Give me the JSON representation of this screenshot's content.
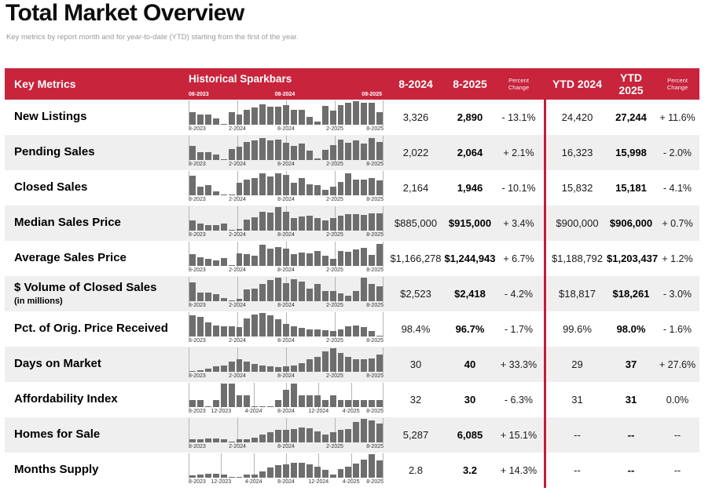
{
  "page": {
    "title": "Total Market Overview",
    "subtitle": "Key metrics by report month and for year-to-date (YTD) starting from the first of the year."
  },
  "colors": {
    "header_red": "#C8243C",
    "divider_red": "#BE1E3A",
    "bar_gray": "#6E6E6E",
    "alt_row_bg": "#EFEFEF"
  },
  "header": {
    "key_metrics": "Key Metrics",
    "sparkbars": "Historical Sparkbars",
    "spark_ticks": [
      "08-2023",
      "08-2024",
      "08-2025"
    ],
    "col_month_1": "8-2024",
    "col_month_2": "8-2025",
    "col_pct_label": "Percent Change",
    "col_ytd_1": "YTD 2024",
    "col_ytd_2": "YTD 2025",
    "col_pct_label_2": "Percent Change"
  },
  "chart_data": {
    "type": "table",
    "title": "Total Market Overview",
    "columns": [
      "Key Metrics",
      "Historical Sparkbars",
      "8-2024",
      "8-2025",
      "Percent Change",
      "YTD 2024",
      "YTD 2025",
      "Percent Change"
    ],
    "sparkbar_note": "each sparkbar is a 25-month bar series (Aug 2023 - Aug 2025), values are relative heights 0-1",
    "rows": [
      {
        "metric": "New Listings",
        "note": "",
        "sparkbar": {
          "type": "bar",
          "x_ticks": [
            "8-2023",
            "2-2024",
            "8-2024",
            "2-2025",
            "8-2025"
          ],
          "values": [
            0.52,
            0.42,
            0.42,
            0.28,
            0.03,
            0.55,
            0.45,
            0.62,
            0.72,
            0.88,
            0.78,
            0.78,
            0.82,
            0.62,
            0.62,
            0.32,
            0.12,
            0.8,
            0.6,
            0.85,
            0.95,
            1.0,
            0.92,
            0.92,
            0.55
          ]
        },
        "cells": {
          "month_2024": "3,326",
          "month_2025": "2,890",
          "month_pct": "- 13.1%",
          "ytd_2024": "24,420",
          "ytd_2025": "27,244",
          "ytd_pct": "+ 11.6%"
        }
      },
      {
        "metric": "Pending Sales",
        "note": "",
        "sparkbar": {
          "type": "bar",
          "x_ticks": [
            "8-2023",
            "2-2024",
            "8-2024",
            "2-2025",
            "8-2025"
          ],
          "values": [
            0.6,
            0.35,
            0.32,
            0.22,
            0.03,
            0.48,
            0.58,
            0.78,
            0.85,
            0.95,
            0.82,
            0.88,
            0.75,
            0.6,
            0.7,
            0.4,
            0.08,
            0.45,
            0.65,
            0.88,
            0.75,
            0.85,
            0.7,
            0.92,
            0.78
          ]
        },
        "cells": {
          "month_2024": "2,022",
          "month_2025": "2,064",
          "month_pct": "+ 2.1%",
          "ytd_2024": "16,323",
          "ytd_2025": "15,998",
          "ytd_pct": "- 2.0%"
        }
      },
      {
        "metric": "Closed Sales",
        "note": "",
        "sparkbar": {
          "type": "bar",
          "x_ticks": [
            "8-2023",
            "2-2024",
            "8-2024",
            "2-2025",
            "8-2025"
          ],
          "values": [
            0.85,
            0.38,
            0.42,
            0.18,
            0.02,
            0.05,
            0.52,
            0.68,
            0.75,
            0.95,
            0.8,
            0.92,
            0.88,
            0.55,
            0.72,
            0.48,
            0.42,
            0.25,
            0.38,
            0.58,
            0.95,
            0.68,
            0.68,
            0.72,
            0.62
          ]
        },
        "cells": {
          "month_2024": "2,164",
          "month_2025": "1,946",
          "month_pct": "- 10.1%",
          "ytd_2024": "15,832",
          "ytd_2025": "15,181",
          "ytd_pct": "- 4.1%"
        }
      },
      {
        "metric": "Median Sales Price",
        "note": "",
        "sparkbar": {
          "type": "bar",
          "x_ticks": [
            "8-2023",
            "2-2024",
            "8-2024",
            "2-2025",
            "8-2025"
          ],
          "values": [
            0.45,
            0.3,
            0.22,
            0.25,
            0.3,
            0.03,
            0.08,
            0.48,
            0.58,
            0.8,
            0.78,
            1.0,
            0.8,
            0.55,
            0.6,
            0.62,
            0.55,
            0.45,
            0.52,
            0.65,
            0.7,
            0.7,
            0.68,
            0.75,
            0.75
          ]
        },
        "cells": {
          "month_2024": "$885,000",
          "month_2025": "$915,000",
          "month_pct": "+ 3.4%",
          "ytd_2024": "$900,000",
          "ytd_2025": "$906,000",
          "ytd_pct": "+ 0.7%"
        }
      },
      {
        "metric": "Average Sales Price",
        "note": "",
        "sparkbar": {
          "type": "bar",
          "x_ticks": [
            "8-2023",
            "2-2024",
            "8-2024",
            "2-2025",
            "8-2025"
          ],
          "values": [
            0.5,
            0.38,
            0.3,
            0.25,
            0.35,
            0.05,
            0.55,
            0.5,
            0.45,
            0.9,
            0.75,
            0.8,
            0.72,
            0.5,
            0.58,
            0.52,
            0.62,
            0.42,
            0.3,
            0.65,
            0.6,
            0.7,
            0.78,
            0.48,
            0.92
          ]
        },
        "cells": {
          "month_2024": "$1,166,278",
          "month_2025": "$1,244,943",
          "month_pct": "+ 6.7%",
          "ytd_2024": "$1,188,792",
          "ytd_2025": "$1,203,437",
          "ytd_pct": "+ 1.2%"
        }
      },
      {
        "metric": "$ Volume of Closed Sales",
        "note": "(in millions)",
        "sparkbar": {
          "type": "bar",
          "x_ticks": [
            "8-2023",
            "2-2024",
            "8-2024",
            "2-2025",
            "8-2025"
          ],
          "values": [
            0.8,
            0.38,
            0.38,
            0.3,
            0.15,
            0.03,
            0.1,
            0.5,
            0.55,
            0.75,
            0.9,
            1.0,
            0.78,
            0.95,
            0.85,
            0.55,
            0.75,
            0.42,
            0.42,
            0.35,
            0.25,
            0.45,
            1.0,
            0.75,
            0.65
          ]
        },
        "cells": {
          "month_2024": "$2,523",
          "month_2025": "$2,418",
          "month_pct": "- 4.2%",
          "ytd_2024": "$18,817",
          "ytd_2025": "$18,261",
          "ytd_pct": "- 3.0%"
        }
      },
      {
        "metric": "Pct. of Orig. Price Received",
        "note": "",
        "sparkbar": {
          "type": "bar",
          "x_ticks": [
            "8-2023",
            "2-2024",
            "8-2024",
            "2-2025",
            "8-2025"
          ],
          "values": [
            0.9,
            0.85,
            0.6,
            0.48,
            0.45,
            0.42,
            0.4,
            0.78,
            0.95,
            1.0,
            0.9,
            0.75,
            0.55,
            0.45,
            0.38,
            0.3,
            0.3,
            0.28,
            0.22,
            0.3,
            0.45,
            0.48,
            0.4,
            0.22,
            0.03
          ]
        },
        "cells": {
          "month_2024": "98.4%",
          "month_2025": "96.7%",
          "month_pct": "- 1.7%",
          "ytd_2024": "99.6%",
          "ytd_2025": "98.0%",
          "ytd_pct": "- 1.6%"
        }
      },
      {
        "metric": "Days on Market",
        "note": "",
        "sparkbar": {
          "type": "bar",
          "x_ticks": [
            "8-2023",
            "2-2024",
            "8-2024",
            "2-2025",
            "8-2025"
          ],
          "values": [
            0.03,
            0.08,
            0.15,
            0.25,
            0.28,
            0.42,
            0.55,
            0.42,
            0.35,
            0.28,
            0.22,
            0.2,
            0.22,
            0.28,
            0.38,
            0.55,
            0.65,
            0.88,
            1.0,
            0.8,
            0.62,
            0.55,
            0.52,
            0.58,
            0.72
          ]
        },
        "cells": {
          "month_2024": "30",
          "month_2025": "40",
          "month_pct": "+ 33.3%",
          "ytd_2024": "29",
          "ytd_2025": "37",
          "ytd_pct": "+ 27.6%"
        }
      },
      {
        "metric": "Affordability Index",
        "note": "",
        "sparkbar": {
          "type": "bar",
          "x_ticks": [
            "8-2023",
            "12-2023",
            "4-2024",
            "8-2024",
            "12-2024",
            "4-2025",
            "8-2025"
          ],
          "values": [
            0.3,
            0.3,
            0.02,
            0.3,
            1.0,
            1.0,
            0.5,
            0.5,
            0.02,
            0.02,
            0.02,
            0.3,
            0.75,
            1.0,
            0.5,
            0.5,
            0.5,
            0.3,
            0.5,
            0.3,
            0.3,
            0.3,
            0.3,
            0.3,
            0.3
          ]
        },
        "cells": {
          "month_2024": "32",
          "month_2025": "30",
          "month_pct": "- 6.3%",
          "ytd_2024": "31",
          "ytd_2025": "31",
          "ytd_pct": "0.0%"
        }
      },
      {
        "metric": "Homes for Sale",
        "note": "",
        "sparkbar": {
          "type": "bar",
          "x_ticks": [
            "8-2023",
            "2-2024",
            "8-2024",
            "2-2025",
            "8-2025"
          ],
          "values": [
            0.12,
            0.15,
            0.18,
            0.18,
            0.15,
            0.03,
            0.12,
            0.15,
            0.2,
            0.32,
            0.45,
            0.52,
            0.55,
            0.58,
            0.62,
            0.6,
            0.48,
            0.35,
            0.45,
            0.52,
            0.58,
            0.88,
            1.0,
            0.95,
            0.8
          ]
        },
        "cells": {
          "month_2024": "5,287",
          "month_2025": "6,085",
          "month_pct": "+ 15.1%",
          "ytd_2024": "--",
          "ytd_2025": "--",
          "ytd_pct": "--"
        }
      },
      {
        "metric": "Months Supply",
        "note": "",
        "sparkbar": {
          "type": "bar",
          "x_ticks": [
            "8-2023",
            "12-2023",
            "4-2024",
            "8-2024",
            "12-2024",
            "4-2025",
            "8-2025"
          ],
          "values": [
            0.1,
            0.15,
            0.18,
            0.18,
            0.15,
            0.03,
            0.05,
            0.12,
            0.15,
            0.28,
            0.45,
            0.52,
            0.58,
            0.62,
            0.65,
            0.58,
            0.48,
            0.35,
            0.15,
            0.38,
            0.48,
            0.6,
            0.78,
            1.0,
            0.72
          ]
        },
        "cells": {
          "month_2024": "2.8",
          "month_2025": "3.2",
          "month_pct": "+ 14.3%",
          "ytd_2024": "--",
          "ytd_2025": "--",
          "ytd_pct": "--"
        }
      }
    ]
  }
}
